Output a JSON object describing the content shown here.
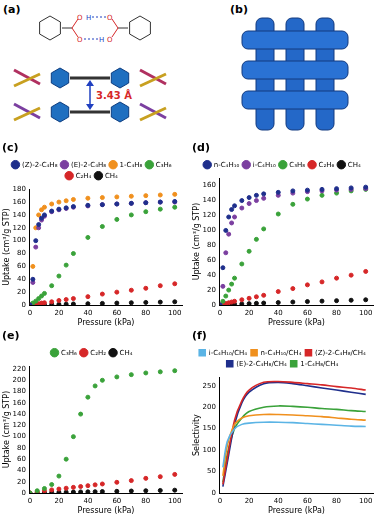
{
  "figure": {
    "panel_a": {
      "label": "(a)",
      "atom_labels": [
        "O",
        "H",
        "O",
        "O",
        "H",
        "O"
      ],
      "distance": "3.43 Å"
    },
    "panel_b": {
      "label": "(b)"
    }
  },
  "chart_data": [
    {
      "type": "scatter",
      "title": "(c)",
      "x_label": "Pressure (kPa)",
      "y_label": "Uptake (cm³/g STP)",
      "x": [
        0,
        2,
        4,
        6,
        8,
        10,
        15,
        20,
        25,
        30,
        40,
        50,
        60,
        70,
        80,
        90,
        100
      ],
      "series": [
        {
          "name": "(Z)-2-C₄H₈",
          "color": "#1f2f8c",
          "values": [
            0,
            40,
            100,
            125,
            135,
            140,
            146,
            149,
            151,
            153,
            155,
            156,
            157,
            158,
            159,
            160,
            161
          ]
        },
        {
          "name": "(E)-2-C₄H₈",
          "color": "#7b3fa0",
          "values": [
            0,
            35,
            90,
            120,
            132,
            138,
            145,
            148,
            150,
            152,
            154,
            156,
            157,
            158,
            159,
            160,
            160
          ]
        },
        {
          "name": "1-C₄H₈",
          "color": "#f0901e",
          "values": [
            0,
            60,
            120,
            140,
            148,
            152,
            157,
            160,
            162,
            164,
            166,
            167,
            168,
            169,
            170,
            171,
            172
          ]
        },
        {
          "name": "C₃H₆",
          "color": "#3aa23a",
          "values": [
            0,
            3,
            6,
            10,
            14,
            18,
            30,
            45,
            62,
            80,
            105,
            122,
            133,
            140,
            145,
            149,
            152
          ]
        },
        {
          "name": "C₂H₄",
          "color": "#d62728",
          "values": [
            0,
            1,
            1.5,
            2,
            3,
            3.5,
            5,
            7,
            8.5,
            10,
            13,
            17,
            20,
            23,
            26,
            30,
            33
          ]
        },
        {
          "name": "CH₄",
          "color": "#111111",
          "values": [
            0,
            0.1,
            0.2,
            0.3,
            0.4,
            0.5,
            0.8,
            1,
            1.3,
            1.6,
            2,
            2.5,
            3,
            3.5,
            4,
            4.5,
            5
          ]
        }
      ],
      "xlim": [
        0,
        105
      ],
      "xticks": [
        0,
        20,
        40,
        60,
        80,
        100
      ],
      "ylim": [
        0,
        180
      ],
      "yticks": [
        0,
        20,
        40,
        60,
        80,
        100,
        120,
        140,
        160,
        180
      ],
      "grid": false,
      "legend": "top",
      "marker": "circle"
    },
    {
      "type": "scatter",
      "title": "(d)",
      "x_label": "Pressure (kPa)",
      "y_label": "Uptake (cm³/g STP)",
      "x": [
        0,
        2,
        4,
        6,
        8,
        10,
        15,
        20,
        25,
        30,
        40,
        50,
        60,
        70,
        80,
        90,
        100
      ],
      "series": [
        {
          "name": "n-C₄H₁₀",
          "color": "#1f2f8c",
          "values": [
            0,
            50,
            100,
            118,
            128,
            133,
            140,
            144,
            147,
            149,
            151,
            153,
            154,
            155,
            156,
            157,
            158
          ]
        },
        {
          "name": "i-C₄H₁₀",
          "color": "#7b3fa0",
          "values": [
            0,
            25,
            70,
            95,
            110,
            118,
            130,
            136,
            140,
            143,
            147,
            150,
            152,
            153,
            154,
            155,
            156
          ]
        },
        {
          "name": "C₃H₈",
          "color": "#3aa23a",
          "values": [
            0,
            5,
            12,
            20,
            28,
            36,
            55,
            72,
            88,
            102,
            122,
            135,
            142,
            147,
            150,
            153,
            155
          ]
        },
        {
          "name": "C₂H₆",
          "color": "#d62728",
          "values": [
            0,
            1,
            2,
            3,
            4,
            5,
            7,
            9,
            11,
            13,
            18,
            22,
            27,
            31,
            36,
            40,
            45
          ]
        },
        {
          "name": "CH₄",
          "color": "#111111",
          "values": [
            0,
            0.2,
            0.4,
            0.6,
            0.8,
            1,
            1.4,
            1.8,
            2.2,
            2.6,
            3.3,
            4,
            4.6,
            5.2,
            5.8,
            6.4,
            7
          ]
        }
      ],
      "xlim": [
        0,
        105
      ],
      "xticks": [
        0,
        20,
        40,
        60,
        80,
        100
      ],
      "ylim": [
        0,
        170
      ],
      "yticks": [
        0,
        20,
        40,
        60,
        80,
        100,
        120,
        140,
        160
      ],
      "grid": false,
      "legend": "top",
      "marker": "circle"
    },
    {
      "type": "scatter",
      "title": "(e)",
      "x_label": "Pressure (kPa)",
      "y_label": "Uptake (cm³/g STP)",
      "x": [
        0,
        5,
        10,
        15,
        20,
        25,
        30,
        35,
        40,
        45,
        50,
        60,
        70,
        80,
        90,
        100
      ],
      "series": [
        {
          "name": "C₃H₆",
          "color": "#3aa23a",
          "values": [
            0,
            4,
            8,
            15,
            30,
            60,
            100,
            140,
            170,
            190,
            200,
            206,
            210,
            213,
            215,
            217
          ]
        },
        {
          "name": "C₂H₂",
          "color": "#d62728",
          "values": [
            0,
            2,
            4,
            5.5,
            7,
            8.5,
            10,
            11.5,
            13,
            14.5,
            16,
            19,
            22,
            26,
            29,
            33
          ]
        },
        {
          "name": "CH₄",
          "color": "#111111",
          "values": [
            0,
            0.3,
            0.6,
            0.9,
            1.2,
            1.5,
            1.7,
            1.9,
            2.1,
            2.3,
            2.6,
            3,
            3.5,
            4,
            4.5,
            5
          ]
        }
      ],
      "xlim": [
        0,
        105
      ],
      "xticks": [
        0,
        20,
        40,
        60,
        80,
        100
      ],
      "ylim": [
        0,
        225
      ],
      "yticks": [
        0,
        20,
        40,
        60,
        80,
        100,
        120,
        140,
        160,
        180,
        200,
        220
      ],
      "grid": false,
      "legend": "top",
      "marker": "circle"
    },
    {
      "type": "line",
      "title": "(f)",
      "x_label": "Pressure (kPa)",
      "y_label": "Selectivity",
      "x": [
        2,
        5,
        10,
        15,
        20,
        30,
        40,
        50,
        60,
        70,
        80,
        90,
        100
      ],
      "series": [
        {
          "name": "i-C₄H₁₀/CH₄",
          "color": "#5bb4e5",
          "values": [
            60,
            120,
            150,
            160,
            163,
            165,
            165,
            164,
            162,
            160,
            158,
            156,
            155
          ]
        },
        {
          "name": "n-C₄H₁₀/CH₄",
          "color": "#f0901e",
          "values": [
            40,
            110,
            160,
            175,
            180,
            183,
            183,
            182,
            180,
            178,
            175,
            172,
            170
          ]
        },
        {
          "name": "(Z)-2-C₄H₈/CH₄",
          "color": "#d62728",
          "values": [
            20,
            80,
            170,
            215,
            240,
            258,
            260,
            258,
            255,
            252,
            248,
            245,
            240
          ]
        },
        {
          "name": "(E)-2-C₄H₈/CH₄",
          "color": "#1f2f8c",
          "values": [
            15,
            70,
            160,
            210,
            235,
            255,
            258,
            255,
            250,
            245,
            240,
            235,
            230
          ]
        },
        {
          "name": "1-C₄H₈/CH₄",
          "color": "#3aa23a",
          "values": [
            25,
            90,
            150,
            175,
            190,
            200,
            203,
            202,
            200,
            197,
            195,
            192,
            190
          ]
        }
      ],
      "xlim": [
        0,
        105
      ],
      "xticks": [
        0,
        20,
        40,
        60,
        80,
        100
      ],
      "ylim": [
        0,
        270
      ],
      "yticks": [
        0,
        50,
        100,
        150,
        200,
        250
      ],
      "grid": false,
      "legend": "top",
      "marker": "none",
      "line_style": "solid"
    }
  ]
}
